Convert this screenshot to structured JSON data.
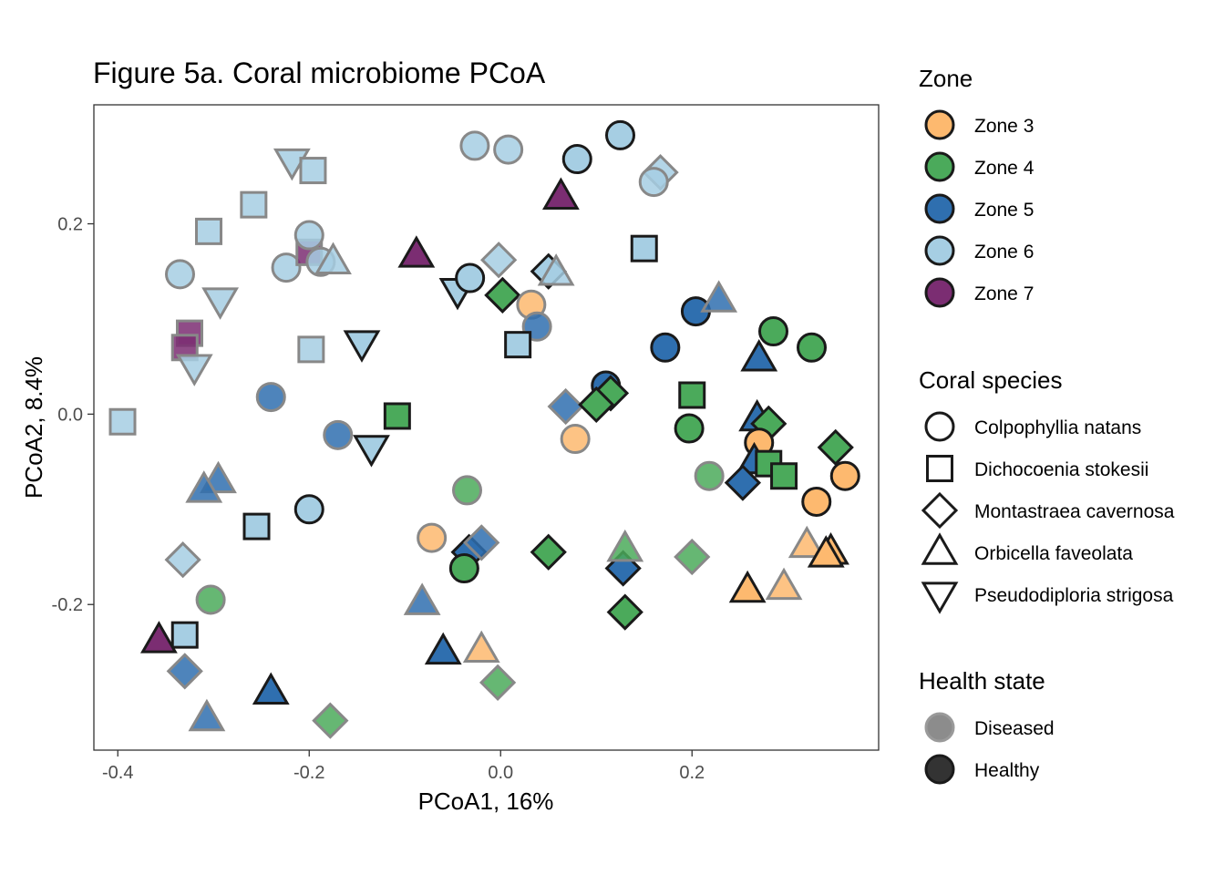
{
  "chart_data": {
    "type": "scatter",
    "title": "Figure 5a. Coral microbiome PCoA",
    "xlabel": "PCoA1, 16%",
    "ylabel": "PCoA2, 8.4%",
    "xlim": [
      -0.425,
      0.395
    ],
    "ylim": [
      -0.353,
      0.325
    ],
    "x_ticks": [
      -0.4,
      -0.2,
      0.0,
      0.2
    ],
    "x_tick_labels": [
      "-0.4",
      "-0.2",
      "0.0",
      "0.2"
    ],
    "y_ticks": [
      -0.2,
      0.0,
      0.2
    ],
    "y_tick_labels": [
      "-0.2",
      "0.0",
      "0.2"
    ],
    "grid": false,
    "legend_position": "right",
    "zones": [
      {
        "key": "z3",
        "label": "Zone 3",
        "color": "#FDB96F"
      },
      {
        "key": "z4",
        "label": "Zone 4",
        "color": "#4BAA5B"
      },
      {
        "key": "z5",
        "label": "Zone 5",
        "color": "#2F6FAF"
      },
      {
        "key": "z6",
        "label": "Zone 6",
        "color": "#A6CEE3"
      },
      {
        "key": "z7",
        "label": "Zone 7",
        "color": "#7B2D72"
      }
    ],
    "species": [
      {
        "key": "CN",
        "label": "Colpophyllia natans",
        "shape": "circle"
      },
      {
        "key": "DS",
        "label": "Dichocoenia stokesii",
        "shape": "square"
      },
      {
        "key": "MC",
        "label": "Montastraea cavernosa",
        "shape": "diamond"
      },
      {
        "key": "OF",
        "label": "Orbicella faveolata",
        "shape": "triangle-up"
      },
      {
        "key": "PS",
        "label": "Pseudodiploria strigosa",
        "shape": "triangle-down"
      }
    ],
    "health_states": [
      {
        "key": "D",
        "label": "Diseased"
      },
      {
        "key": "H",
        "label": "Healthy"
      }
    ],
    "legend_titles": {
      "zone": "Zone",
      "species": "Coral species",
      "health": "Health state"
    },
    "points": [
      {
        "x": -0.395,
        "y": -0.008,
        "zone": "z6",
        "species": "DS",
        "health": "D"
      },
      {
        "x": -0.335,
        "y": 0.147,
        "zone": "z6",
        "species": "CN",
        "health": "D"
      },
      {
        "x": -0.305,
        "y": 0.192,
        "zone": "z6",
        "species": "DS",
        "health": "D"
      },
      {
        "x": -0.258,
        "y": 0.22,
        "zone": "z6",
        "species": "DS",
        "health": "D"
      },
      {
        "x": -0.218,
        "y": 0.266,
        "zone": "z6",
        "species": "PS",
        "health": "D"
      },
      {
        "x": -0.196,
        "y": 0.256,
        "zone": "z6",
        "species": "DS",
        "health": "D"
      },
      {
        "x": -0.224,
        "y": 0.154,
        "zone": "z6",
        "species": "CN",
        "health": "D"
      },
      {
        "x": -0.2,
        "y": 0.17,
        "zone": "z7",
        "species": "DS",
        "health": "D"
      },
      {
        "x": -0.2,
        "y": 0.188,
        "zone": "z6",
        "species": "CN",
        "health": "D"
      },
      {
        "x": -0.188,
        "y": 0.16,
        "zone": "z6",
        "species": "CN",
        "health": "D"
      },
      {
        "x": -0.175,
        "y": 0.16,
        "zone": "z6",
        "species": "OF",
        "health": "D"
      },
      {
        "x": -0.293,
        "y": 0.12,
        "zone": "z6",
        "species": "PS",
        "health": "D"
      },
      {
        "x": -0.325,
        "y": 0.085,
        "zone": "z7",
        "species": "DS",
        "health": "D"
      },
      {
        "x": -0.33,
        "y": 0.07,
        "zone": "z7",
        "species": "DS",
        "health": "D"
      },
      {
        "x": -0.32,
        "y": 0.05,
        "zone": "z6",
        "species": "PS",
        "health": "D"
      },
      {
        "x": -0.198,
        "y": 0.068,
        "zone": "z6",
        "species": "DS",
        "health": "D"
      },
      {
        "x": -0.24,
        "y": 0.018,
        "zone": "z5",
        "species": "CN",
        "health": "D"
      },
      {
        "x": -0.17,
        "y": -0.022,
        "zone": "z5",
        "species": "CN",
        "health": "D"
      },
      {
        "x": -0.295,
        "y": -0.07,
        "zone": "z5",
        "species": "OF",
        "health": "D"
      },
      {
        "x": -0.31,
        "y": -0.08,
        "zone": "z5",
        "species": "OF",
        "health": "D"
      },
      {
        "x": -0.332,
        "y": -0.153,
        "zone": "z6",
        "species": "MC",
        "health": "D"
      },
      {
        "x": -0.303,
        "y": -0.195,
        "zone": "z4",
        "species": "CN",
        "health": "D"
      },
      {
        "x": -0.33,
        "y": -0.232,
        "zone": "z6",
        "species": "DS",
        "health": "H"
      },
      {
        "x": -0.357,
        "y": -0.238,
        "zone": "z7",
        "species": "OF",
        "health": "H"
      },
      {
        "x": -0.33,
        "y": -0.27,
        "zone": "z5",
        "species": "MC",
        "health": "D"
      },
      {
        "x": -0.307,
        "y": -0.32,
        "zone": "z5",
        "species": "OF",
        "health": "D"
      },
      {
        "x": -0.255,
        "y": -0.118,
        "zone": "z6",
        "species": "DS",
        "health": "H"
      },
      {
        "x": -0.2,
        "y": -0.1,
        "zone": "z6",
        "species": "CN",
        "health": "H"
      },
      {
        "x": -0.24,
        "y": -0.292,
        "zone": "z5",
        "species": "OF",
        "health": "H"
      },
      {
        "x": -0.178,
        "y": -0.322,
        "zone": "z4",
        "species": "MC",
        "health": "D"
      },
      {
        "x": -0.145,
        "y": 0.075,
        "zone": "z6",
        "species": "PS",
        "health": "H"
      },
      {
        "x": -0.135,
        "y": -0.035,
        "zone": "z6",
        "species": "PS",
        "health": "H"
      },
      {
        "x": -0.108,
        "y": -0.002,
        "zone": "z4",
        "species": "DS",
        "health": "H"
      },
      {
        "x": -0.088,
        "y": 0.167,
        "zone": "z7",
        "species": "OF",
        "health": "H"
      },
      {
        "x": -0.045,
        "y": 0.13,
        "zone": "z6",
        "species": "PS",
        "health": "H"
      },
      {
        "x": -0.032,
        "y": 0.143,
        "zone": "z6",
        "species": "CN",
        "health": "H"
      },
      {
        "x": -0.027,
        "y": 0.282,
        "zone": "z6",
        "species": "CN",
        "health": "D"
      },
      {
        "x": 0.008,
        "y": 0.278,
        "zone": "z6",
        "species": "CN",
        "health": "D"
      },
      {
        "x": -0.002,
        "y": 0.162,
        "zone": "z6",
        "species": "MC",
        "health": "D"
      },
      {
        "x": 0.002,
        "y": 0.125,
        "zone": "z4",
        "species": "MC",
        "health": "H"
      },
      {
        "x": 0.032,
        "y": 0.115,
        "zone": "z3",
        "species": "CN",
        "health": "D"
      },
      {
        "x": 0.038,
        "y": 0.092,
        "zone": "z5",
        "species": "CN",
        "health": "D"
      },
      {
        "x": 0.018,
        "y": 0.073,
        "zone": "z6",
        "species": "DS",
        "health": "H"
      },
      {
        "x": 0.05,
        "y": 0.15,
        "zone": "z6",
        "species": "MC",
        "health": "H"
      },
      {
        "x": 0.058,
        "y": 0.148,
        "zone": "z6",
        "species": "OF",
        "health": "D"
      },
      {
        "x": 0.063,
        "y": 0.228,
        "zone": "z7",
        "species": "OF",
        "health": "H"
      },
      {
        "x": 0.08,
        "y": 0.268,
        "zone": "z6",
        "species": "CN",
        "health": "H"
      },
      {
        "x": 0.125,
        "y": 0.293,
        "zone": "z6",
        "species": "CN",
        "health": "H"
      },
      {
        "x": 0.167,
        "y": 0.254,
        "zone": "z6",
        "species": "MC",
        "health": "D"
      },
      {
        "x": 0.16,
        "y": 0.244,
        "zone": "z6",
        "species": "CN",
        "health": "D"
      },
      {
        "x": 0.15,
        "y": 0.174,
        "zone": "z6",
        "species": "DS",
        "health": "H"
      },
      {
        "x": 0.068,
        "y": 0.008,
        "zone": "z5",
        "species": "MC",
        "health": "D"
      },
      {
        "x": 0.11,
        "y": 0.03,
        "zone": "z5",
        "species": "CN",
        "health": "H"
      },
      {
        "x": 0.115,
        "y": 0.022,
        "zone": "z4",
        "species": "MC",
        "health": "H"
      },
      {
        "x": 0.1,
        "y": 0.01,
        "zone": "z4",
        "species": "MC",
        "health": "H"
      },
      {
        "x": 0.078,
        "y": -0.026,
        "zone": "z3",
        "species": "CN",
        "health": "D"
      },
      {
        "x": -0.035,
        "y": -0.08,
        "zone": "z4",
        "species": "CN",
        "health": "D"
      },
      {
        "x": -0.072,
        "y": -0.13,
        "zone": "z3",
        "species": "CN",
        "health": "D"
      },
      {
        "x": -0.033,
        "y": -0.145,
        "zone": "z5",
        "species": "MC",
        "health": "H"
      },
      {
        "x": -0.02,
        "y": -0.135,
        "zone": "z5",
        "species": "MC",
        "health": "D"
      },
      {
        "x": -0.038,
        "y": -0.162,
        "zone": "z4",
        "species": "CN",
        "health": "H"
      },
      {
        "x": 0.05,
        "y": -0.145,
        "zone": "z4",
        "species": "MC",
        "health": "H"
      },
      {
        "x": -0.082,
        "y": -0.198,
        "zone": "z5",
        "species": "OF",
        "health": "D"
      },
      {
        "x": -0.06,
        "y": -0.25,
        "zone": "z5",
        "species": "OF",
        "health": "H"
      },
      {
        "x": -0.02,
        "y": -0.248,
        "zone": "z3",
        "species": "OF",
        "health": "D"
      },
      {
        "x": -0.003,
        "y": -0.282,
        "zone": "z4",
        "species": "MC",
        "health": "D"
      },
      {
        "x": 0.128,
        "y": -0.162,
        "zone": "z5",
        "species": "MC",
        "health": "H"
      },
      {
        "x": 0.13,
        "y": -0.142,
        "zone": "z4",
        "species": "OF",
        "health": "D"
      },
      {
        "x": 0.13,
        "y": -0.208,
        "zone": "z4",
        "species": "MC",
        "health": "H"
      },
      {
        "x": 0.2,
        "y": -0.15,
        "zone": "z4",
        "species": "MC",
        "health": "D"
      },
      {
        "x": 0.2,
        "y": 0.02,
        "zone": "z4",
        "species": "DS",
        "health": "H"
      },
      {
        "x": 0.197,
        "y": -0.015,
        "zone": "z4",
        "species": "CN",
        "health": "H"
      },
      {
        "x": 0.218,
        "y": -0.065,
        "zone": "z4",
        "species": "CN",
        "health": "D"
      },
      {
        "x": 0.204,
        "y": 0.108,
        "zone": "z5",
        "species": "CN",
        "health": "H"
      },
      {
        "x": 0.172,
        "y": 0.07,
        "zone": "z5",
        "species": "CN",
        "health": "H"
      },
      {
        "x": 0.228,
        "y": 0.12,
        "zone": "z5",
        "species": "OF",
        "health": "D"
      },
      {
        "x": 0.27,
        "y": 0.058,
        "zone": "z5",
        "species": "OF",
        "health": "H"
      },
      {
        "x": 0.285,
        "y": 0.087,
        "zone": "z4",
        "species": "CN",
        "health": "H"
      },
      {
        "x": 0.325,
        "y": 0.07,
        "zone": "z4",
        "species": "CN",
        "health": "H"
      },
      {
        "x": 0.268,
        "y": -0.005,
        "zone": "z5",
        "species": "OF",
        "health": "H"
      },
      {
        "x": 0.28,
        "y": -0.01,
        "zone": "z4",
        "species": "MC",
        "health": "H"
      },
      {
        "x": 0.27,
        "y": -0.03,
        "zone": "z3",
        "species": "CN",
        "health": "H"
      },
      {
        "x": 0.265,
        "y": -0.05,
        "zone": "z5",
        "species": "OF",
        "health": "H"
      },
      {
        "x": 0.253,
        "y": -0.072,
        "zone": "z5",
        "species": "MC",
        "health": "H"
      },
      {
        "x": 0.28,
        "y": -0.052,
        "zone": "z4",
        "species": "DS",
        "health": "H"
      },
      {
        "x": 0.296,
        "y": -0.065,
        "zone": "z4",
        "species": "DS",
        "health": "H"
      },
      {
        "x": 0.35,
        "y": -0.035,
        "zone": "z4",
        "species": "MC",
        "health": "H"
      },
      {
        "x": 0.33,
        "y": -0.092,
        "zone": "z3",
        "species": "CN",
        "health": "H"
      },
      {
        "x": 0.36,
        "y": -0.065,
        "zone": "z3",
        "species": "CN",
        "health": "H"
      },
      {
        "x": 0.32,
        "y": -0.138,
        "zone": "z3",
        "species": "OF",
        "health": "D"
      },
      {
        "x": 0.345,
        "y": -0.145,
        "zone": "z3",
        "species": "OF",
        "health": "H"
      },
      {
        "x": 0.34,
        "y": -0.148,
        "zone": "z3",
        "species": "OF",
        "health": "H"
      },
      {
        "x": 0.258,
        "y": -0.185,
        "zone": "z3",
        "species": "OF",
        "health": "H"
      },
      {
        "x": 0.296,
        "y": -0.182,
        "zone": "z3",
        "species": "OF",
        "health": "D"
      }
    ]
  }
}
